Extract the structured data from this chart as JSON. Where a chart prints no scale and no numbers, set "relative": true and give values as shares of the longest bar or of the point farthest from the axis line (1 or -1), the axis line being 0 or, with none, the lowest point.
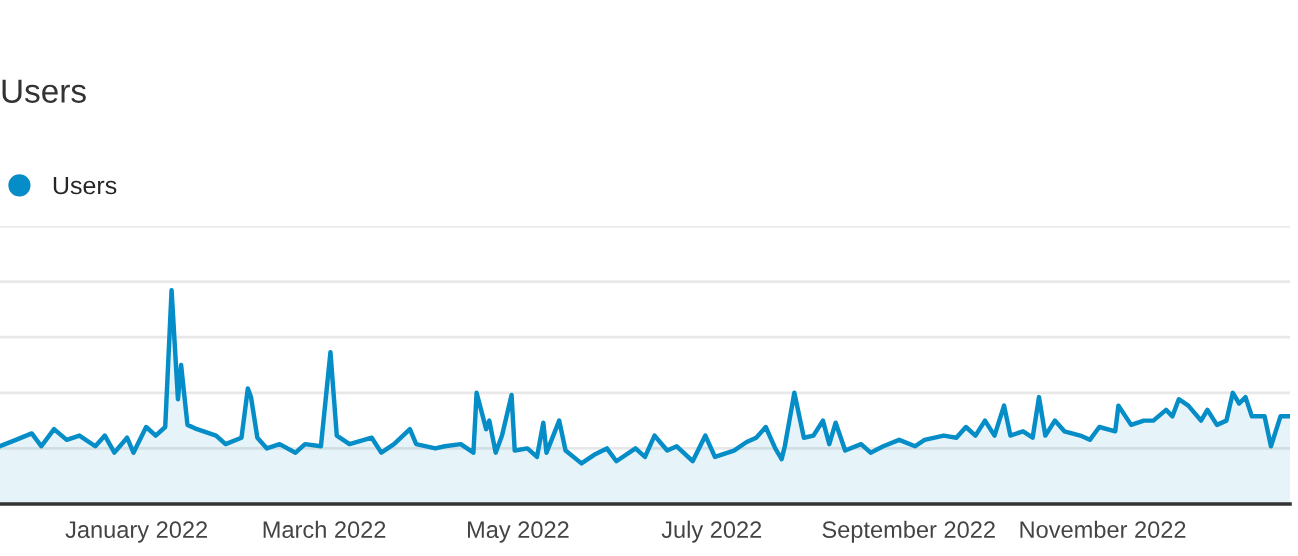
{
  "chart_data": {
    "type": "area",
    "title": "Users",
    "relative": true,
    "grid": "y",
    "legend": "top left",
    "marker": "none",
    "xlim": [
      "2021-11-19",
      "2022-12-30"
    ],
    "xticks": [
      {
        "value": "2022-01-01",
        "label": "January 2022"
      },
      {
        "value": "2022-03-01",
        "label": "March 2022"
      },
      {
        "value": "2022-05-01",
        "label": "May 2022"
      },
      {
        "value": "2022-07-01",
        "label": "July 2022"
      },
      {
        "value": "2022-09-01",
        "label": "September 2022"
      },
      {
        "value": "2022-11-01",
        "label": "November 2022"
      }
    ],
    "x": [
      "2021-11-19",
      "2021-11-24",
      "2021-11-29",
      "2021-12-02",
      "2021-12-06",
      "2021-12-10",
      "2021-12-14",
      "2021-12-19",
      "2021-12-22",
      "2021-12-25",
      "2021-12-29",
      "2021-12-31",
      "2022-01-04",
      "2022-01-07",
      "2022-01-10",
      "2022-01-12",
      "2022-01-14",
      "2022-01-15",
      "2022-01-17",
      "2022-01-20",
      "2022-01-26",
      "2022-01-29",
      "2022-02-03",
      "2022-02-05",
      "2022-02-06",
      "2022-02-08",
      "2022-02-11",
      "2022-02-15",
      "2022-02-20",
      "2022-02-23",
      "2022-02-28",
      "2022-03-03",
      "2022-03-05",
      "2022-03-09",
      "2022-03-16",
      "2022-03-19",
      "2022-03-23",
      "2022-03-28",
      "2022-03-30",
      "2022-04-05",
      "2022-04-08",
      "2022-04-13",
      "2022-04-17",
      "2022-04-18",
      "2022-04-21",
      "2022-04-22",
      "2022-04-24",
      "2022-04-26",
      "2022-04-29",
      "2022-04-30",
      "2022-05-04",
      "2022-05-07",
      "2022-05-09",
      "2022-05-10",
      "2022-05-14",
      "2022-05-16",
      "2022-05-21",
      "2022-05-25",
      "2022-05-29",
      "2022-06-01",
      "2022-06-07",
      "2022-06-10",
      "2022-06-13",
      "2022-06-17",
      "2022-06-20",
      "2022-06-25",
      "2022-06-29",
      "2022-07-02",
      "2022-07-08",
      "2022-07-12",
      "2022-07-15",
      "2022-07-18",
      "2022-07-21",
      "2022-07-23",
      "2022-07-24",
      "2022-07-27",
      "2022-07-30",
      "2022-08-02",
      "2022-08-05",
      "2022-08-07",
      "2022-08-09",
      "2022-08-12",
      "2022-08-17",
      "2022-08-20",
      "2022-08-24",
      "2022-08-29",
      "2022-09-03",
      "2022-09-06",
      "2022-09-12",
      "2022-09-16",
      "2022-09-19",
      "2022-09-22",
      "2022-09-25",
      "2022-09-28",
      "2022-10-01",
      "2022-10-03",
      "2022-10-07",
      "2022-10-10",
      "2022-10-12",
      "2022-10-14",
      "2022-10-17",
      "2022-10-20",
      "2022-10-25",
      "2022-10-28",
      "2022-10-31",
      "2022-11-05",
      "2022-11-06",
      "2022-11-10",
      "2022-11-14",
      "2022-11-17",
      "2022-11-21",
      "2022-11-23",
      "2022-11-25",
      "2022-11-28",
      "2022-12-02",
      "2022-12-04",
      "2022-12-07",
      "2022-12-10",
      "2022-12-12",
      "2022-12-14",
      "2022-12-16",
      "2022-12-18",
      "2022-12-22",
      "2022-12-24",
      "2022-12-27",
      "2022-12-30"
    ],
    "series": [
      {
        "name": "Users",
        "color": "#058dc7",
        "values": [
          0.27,
          0.3,
          0.33,
          0.27,
          0.35,
          0.3,
          0.32,
          0.27,
          0.32,
          0.24,
          0.31,
          0.24,
          0.36,
          0.32,
          0.36,
          1.0,
          0.49,
          0.65,
          0.37,
          0.35,
          0.32,
          0.28,
          0.31,
          0.54,
          0.5,
          0.31,
          0.26,
          0.28,
          0.24,
          0.28,
          0.27,
          0.71,
          0.32,
          0.28,
          0.31,
          0.24,
          0.28,
          0.35,
          0.28,
          0.26,
          0.27,
          0.28,
          0.24,
          0.52,
          0.35,
          0.39,
          0.24,
          0.32,
          0.51,
          0.25,
          0.26,
          0.22,
          0.38,
          0.24,
          0.39,
          0.25,
          0.19,
          0.23,
          0.26,
          0.2,
          0.26,
          0.22,
          0.32,
          0.25,
          0.27,
          0.2,
          0.32,
          0.22,
          0.25,
          0.29,
          0.31,
          0.36,
          0.26,
          0.21,
          0.27,
          0.52,
          0.31,
          0.32,
          0.39,
          0.28,
          0.38,
          0.25,
          0.28,
          0.24,
          0.27,
          0.3,
          0.27,
          0.3,
          0.32,
          0.31,
          0.36,
          0.32,
          0.39,
          0.32,
          0.46,
          0.32,
          0.34,
          0.31,
          0.5,
          0.32,
          0.39,
          0.34,
          0.32,
          0.3,
          0.36,
          0.34,
          0.46,
          0.37,
          0.39,
          0.39,
          0.44,
          0.41,
          0.49,
          0.46,
          0.39,
          0.44,
          0.37,
          0.39,
          0.52,
          0.47,
          0.5,
          0.41,
          0.41,
          0.27,
          0.41,
          0.41
        ]
      }
    ]
  }
}
